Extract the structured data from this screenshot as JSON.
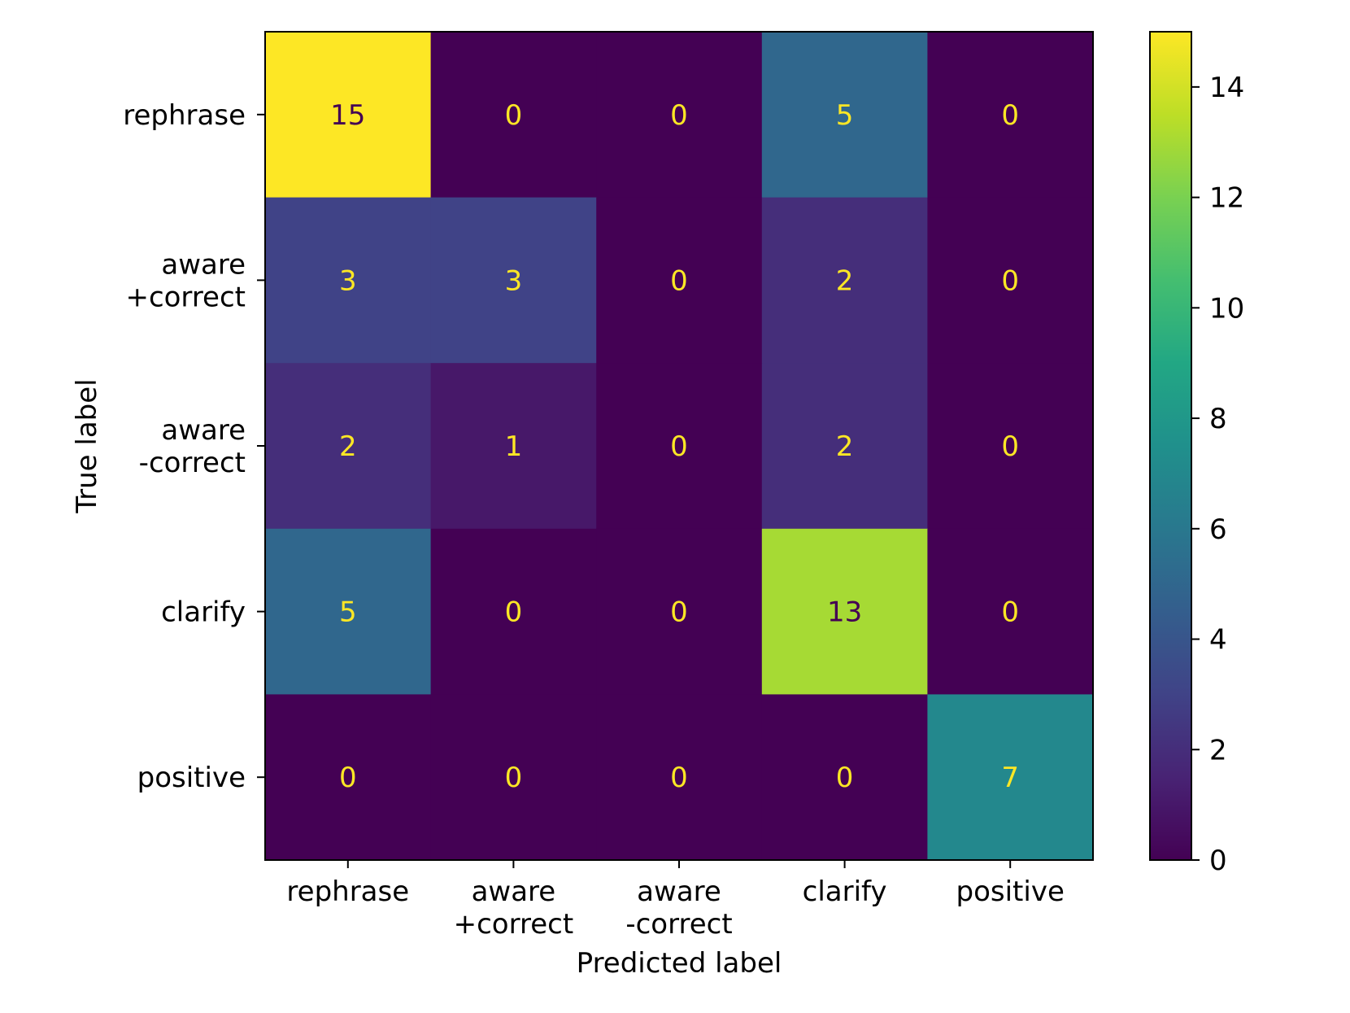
{
  "chart_data": {
    "type": "heatmap",
    "title": "",
    "xlabel": "Predicted label",
    "ylabel": "True label",
    "x_categories": [
      "rephrase",
      "aware\n+correct",
      "aware\n-correct",
      "clarify",
      "positive"
    ],
    "y_categories": [
      "rephrase",
      "aware\n+correct",
      "aware\n-correct",
      "clarify",
      "positive"
    ],
    "values": [
      [
        15,
        0,
        0,
        5,
        0
      ],
      [
        3,
        3,
        0,
        2,
        0
      ],
      [
        2,
        1,
        0,
        2,
        0
      ],
      [
        5,
        0,
        0,
        13,
        0
      ],
      [
        0,
        0,
        0,
        0,
        7
      ]
    ],
    "colormap": "viridis",
    "value_range": [
      0,
      15
    ],
    "colorbar_ticks": [
      0,
      2,
      4,
      6,
      8,
      10,
      12,
      14
    ],
    "text_color_dark_cells": "#fde725",
    "text_color_light_cells": "#440154",
    "grid": false,
    "colorbar_position": "right"
  }
}
